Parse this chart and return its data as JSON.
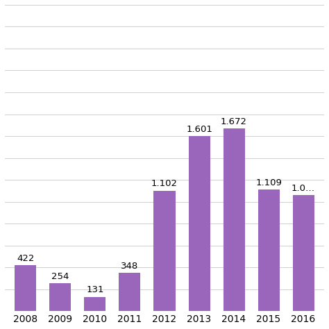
{
  "years": [
    "2008",
    "2009",
    "2010",
    "2011",
    "2012",
    "2013",
    "2014",
    "2015",
    "2016"
  ],
  "values": [
    422,
    254,
    131,
    348,
    1102,
    1601,
    1672,
    1109,
    1059
  ],
  "labels": [
    "422",
    "254",
    "131",
    "348",
    "1.102",
    "1.601",
    "1.672",
    "1.109",
    "1.0…"
  ],
  "bar_color": "#9966bb",
  "background_color": "#ffffff",
  "grid_color": "#d0d0d0",
  "ylim": [
    0,
    2800
  ],
  "grid_step": 200,
  "label_fontsize": 9.5,
  "tick_fontsize": 10,
  "bar_width": 0.62
}
